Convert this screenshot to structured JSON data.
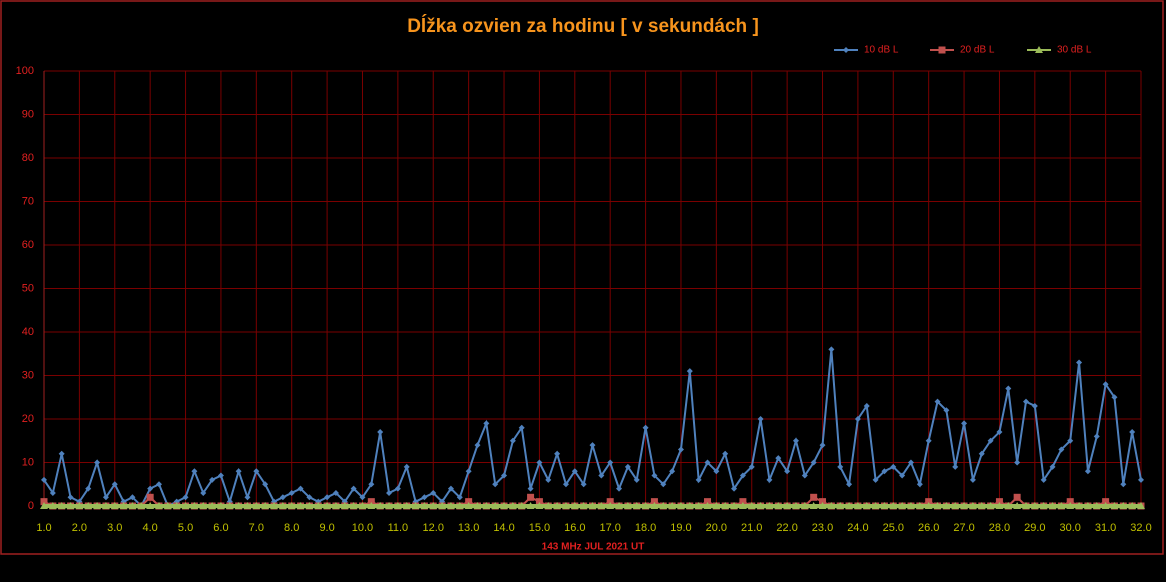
{
  "chart_data": {
    "type": "line",
    "title": "Dĺžka ozvien za hodinu [ v sekundách ]",
    "x_label": "143 MHz JUL  2021  UT",
    "x": [
      1,
      1.25,
      1.5,
      1.75,
      2,
      2.25,
      2.5,
      2.75,
      3,
      3.25,
      3.5,
      3.75,
      4,
      4.25,
      4.5,
      4.75,
      5,
      5.25,
      5.5,
      5.75,
      6,
      6.25,
      6.5,
      6.75,
      7,
      7.25,
      7.5,
      7.75,
      8,
      8.25,
      8.5,
      8.75,
      9,
      9.25,
      9.5,
      9.75,
      10,
      10.25,
      10.5,
      10.75,
      11,
      11.25,
      11.5,
      11.75,
      12,
      12.25,
      12.5,
      12.75,
      13,
      13.25,
      13.5,
      13.75,
      14,
      14.25,
      14.5,
      14.75,
      15,
      15.25,
      15.5,
      15.75,
      16,
      16.25,
      16.5,
      16.75,
      17,
      17.25,
      17.5,
      17.75,
      18,
      18.25,
      18.5,
      18.75,
      19,
      19.25,
      19.5,
      19.75,
      20,
      20.25,
      20.5,
      20.75,
      21,
      21.25,
      21.5,
      21.75,
      22,
      22.25,
      22.5,
      22.75,
      23,
      23.25,
      23.5,
      23.75,
      24,
      24.25,
      24.5,
      24.75,
      25,
      25.25,
      25.5,
      25.75,
      26,
      26.25,
      26.5,
      26.75,
      27,
      27.25,
      27.5,
      27.75,
      28,
      28.25,
      28.5,
      28.75,
      29,
      29.25,
      29.5,
      29.75,
      30,
      30.25,
      30.5,
      30.75,
      31,
      31.25,
      31.5,
      31.75,
      32
    ],
    "series": [
      {
        "name": "10 dB L",
        "color": "#4f81bd",
        "marker": "diamond",
        "values": [
          6,
          3,
          12,
          2,
          1,
          4,
          10,
          2,
          5,
          1,
          2,
          0,
          4,
          5,
          0,
          1,
          2,
          8,
          3,
          6,
          7,
          1,
          8,
          2,
          8,
          5,
          1,
          2,
          3,
          4,
          2,
          1,
          2,
          3,
          1,
          4,
          2,
          5,
          17,
          3,
          4,
          9,
          1,
          2,
          3,
          1,
          4,
          2,
          8,
          14,
          19,
          5,
          7,
          15,
          18,
          4,
          10,
          6,
          12,
          5,
          8,
          5,
          14,
          7,
          10,
          4,
          9,
          6,
          18,
          7,
          5,
          8,
          13,
          31,
          6,
          10,
          8,
          12,
          4,
          7,
          9,
          20,
          6,
          11,
          8,
          15,
          7,
          10,
          14,
          36,
          9,
          5,
          20,
          23,
          6,
          8,
          9,
          7,
          10,
          5,
          15,
          24,
          22,
          9,
          19,
          6,
          12,
          15,
          17,
          27,
          10,
          24,
          23,
          6,
          9,
          13,
          15,
          33,
          8,
          16,
          28,
          25,
          5,
          17,
          6
        ]
      },
      {
        "name": "20 dB L",
        "color": "#c0504d",
        "marker": "square",
        "values": [
          1,
          0,
          0,
          0,
          0,
          0,
          0,
          0,
          0,
          0,
          0,
          0,
          2,
          0,
          0,
          0,
          0,
          0,
          0,
          0,
          0,
          0,
          0,
          0,
          0,
          0,
          0,
          0,
          0,
          0,
          0,
          0,
          0,
          0,
          0,
          0,
          0,
          1,
          0,
          0,
          0,
          0,
          0,
          0,
          0,
          0,
          0,
          0,
          1,
          0,
          0,
          0,
          0,
          0,
          0,
          2,
          1,
          0,
          0,
          0,
          0,
          0,
          0,
          0,
          1,
          0,
          0,
          0,
          0,
          1,
          0,
          0,
          0,
          0,
          0,
          1,
          0,
          0,
          0,
          1,
          0,
          0,
          0,
          0,
          0,
          0,
          0,
          2,
          1,
          0,
          0,
          0,
          0,
          0,
          0,
          0,
          0,
          0,
          0,
          0,
          1,
          0,
          0,
          0,
          0,
          0,
          0,
          0,
          1,
          0,
          2,
          0,
          0,
          0,
          0,
          0,
          1,
          0,
          0,
          0,
          1,
          0,
          0,
          0,
          0
        ]
      },
      {
        "name": "30 dB L",
        "color": "#9bbb59",
        "marker": "triangle",
        "values": [
          0,
          0,
          0,
          0,
          0,
          0,
          0,
          0,
          0,
          0,
          0,
          0,
          0,
          0,
          0,
          0,
          0,
          0,
          0,
          0,
          0,
          0,
          0,
          0,
          0,
          0,
          0,
          0,
          0,
          0,
          0,
          0,
          0,
          0,
          0,
          0,
          0,
          0,
          0,
          0,
          0,
          0,
          0,
          0,
          0,
          0,
          0,
          0,
          0,
          0,
          0,
          0,
          0,
          0,
          0,
          0,
          0,
          0,
          0,
          0,
          0,
          0,
          0,
          0,
          0,
          0,
          0,
          0,
          0,
          0,
          0,
          0,
          0,
          0,
          0,
          0,
          0,
          0,
          0,
          0,
          0,
          0,
          0,
          0,
          0,
          0,
          0,
          0,
          0,
          0,
          0,
          0,
          0,
          0,
          0,
          0,
          0,
          0,
          0,
          0,
          0,
          0,
          0,
          0,
          0,
          0,
          0,
          0,
          0,
          0,
          0,
          0,
          0,
          0,
          0,
          0,
          0,
          0,
          0,
          0,
          0,
          0,
          0,
          0,
          0
        ]
      }
    ],
    "xlim": [
      1,
      32
    ],
    "xticks": [
      {
        "value": 1,
        "label": "1.0"
      },
      {
        "value": 2,
        "label": "2.0"
      },
      {
        "value": 3,
        "label": "3.0"
      },
      {
        "value": 4,
        "label": "4.0"
      },
      {
        "value": 5,
        "label": "5.0"
      },
      {
        "value": 6,
        "label": "6.0"
      },
      {
        "value": 7,
        "label": "7.0"
      },
      {
        "value": 8,
        "label": "8.0"
      },
      {
        "value": 9,
        "label": "9.0"
      },
      {
        "value": 10,
        "label": "10.0"
      },
      {
        "value": 11,
        "label": "11.0"
      },
      {
        "value": 12,
        "label": "12.0"
      },
      {
        "value": 13,
        "label": "13.0"
      },
      {
        "value": 14,
        "label": "14.0"
      },
      {
        "value": 15,
        "label": "15.0"
      },
      {
        "value": 16,
        "label": "16.0"
      },
      {
        "value": 17,
        "label": "17.0"
      },
      {
        "value": 18,
        "label": "18.0"
      },
      {
        "value": 19,
        "label": "19.0"
      },
      {
        "value": 20,
        "label": "20.0"
      },
      {
        "value": 21,
        "label": "21.0"
      },
      {
        "value": 22,
        "label": "22.0"
      },
      {
        "value": 23,
        "label": "23.0"
      },
      {
        "value": 24,
        "label": "24.0"
      },
      {
        "value": 25,
        "label": "25.0"
      },
      {
        "value": 26,
        "label": "26.0"
      },
      {
        "value": 27,
        "label": "27.0"
      },
      {
        "value": 28,
        "label": "28.0"
      },
      {
        "value": 29,
        "label": "29.0"
      },
      {
        "value": 30,
        "label": "30.0"
      },
      {
        "value": 31,
        "label": "31.0"
      },
      {
        "value": 32,
        "label": "32.0"
      }
    ],
    "ylim": [
      0,
      100
    ],
    "yticks": [
      0,
      10,
      20,
      30,
      40,
      50,
      60,
      70,
      80,
      90,
      100
    ],
    "grid": true,
    "legend": "top-right"
  }
}
